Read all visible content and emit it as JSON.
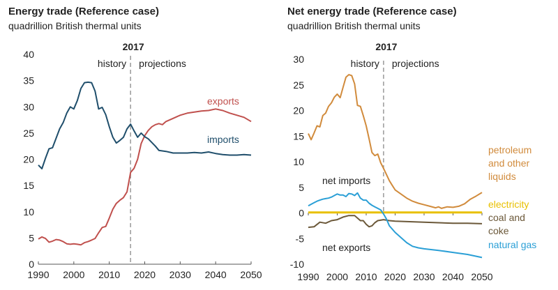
{
  "chart_data": [
    {
      "type": "line",
      "title": "Energy trade (Reference case)",
      "subtitle": "quadrillion British thermal units",
      "xlabel": "",
      "ylabel": "",
      "xlim": [
        1990,
        2050
      ],
      "ylim": [
        0,
        40
      ],
      "xticks": [
        1990,
        2000,
        2010,
        2020,
        2030,
        2040,
        2050
      ],
      "yticks": [
        0,
        5,
        10,
        15,
        20,
        25,
        30,
        35,
        40
      ],
      "divider": {
        "year": 2016,
        "label": "2017"
      },
      "history_label": "history",
      "projections_label": "projections",
      "series": [
        {
          "name": "exports",
          "color": "#c0504d",
          "x": [
            1990,
            1991,
            1992,
            1993,
            1994,
            1995,
            1996,
            1997,
            1998,
            1999,
            2000,
            2001,
            2002,
            2003,
            2004,
            2005,
            2006,
            2007,
            2008,
            2009,
            2010,
            2011,
            2012,
            2013,
            2014,
            2015,
            2016,
            2017,
            2018,
            2019,
            2020,
            2021,
            2022,
            2023,
            2024,
            2025,
            2026,
            2028,
            2030,
            2032,
            2034,
            2036,
            2038,
            2040,
            2042,
            2044,
            2046,
            2048,
            2050
          ],
          "values": [
            4.8,
            5.2,
            4.9,
            4.2,
            4.4,
            4.7,
            4.6,
            4.3,
            3.9,
            3.8,
            3.9,
            3.8,
            3.7,
            4.1,
            4.3,
            4.6,
            4.9,
            6.0,
            7.0,
            7.2,
            8.8,
            10.5,
            11.6,
            12.2,
            12.7,
            13.8,
            17.5,
            18.3,
            20.0,
            23.0,
            24.5,
            25.5,
            26.2,
            26.6,
            26.8,
            26.6,
            27.2,
            27.8,
            28.4,
            28.8,
            29.0,
            29.2,
            29.3,
            29.6,
            29.3,
            28.8,
            28.4,
            28.0,
            27.2
          ]
        },
        {
          "name": "imports",
          "color": "#1f4e6b",
          "x": [
            1990,
            1991,
            1992,
            1993,
            1994,
            1995,
            1996,
            1997,
            1998,
            1999,
            2000,
            2001,
            2002,
            2003,
            2004,
            2005,
            2006,
            2007,
            2008,
            2009,
            2010,
            2011,
            2012,
            2013,
            2014,
            2015,
            2016,
            2017,
            2018,
            2019,
            2020,
            2021,
            2022,
            2023,
            2024,
            2025,
            2026,
            2028,
            2030,
            2032,
            2034,
            2036,
            2038,
            2040,
            2042,
            2044,
            2046,
            2048,
            2050
          ],
          "values": [
            18.9,
            18.2,
            20.2,
            22.0,
            22.2,
            24.0,
            25.8,
            27.0,
            28.8,
            30.0,
            29.6,
            31.2,
            33.5,
            34.6,
            34.7,
            34.6,
            33.0,
            29.6,
            29.9,
            28.5,
            26.2,
            24.2,
            23.1,
            23.6,
            24.2,
            25.8,
            26.7,
            25.4,
            24.2,
            25.0,
            24.3,
            23.9,
            23.2,
            22.5,
            21.7,
            21.6,
            21.5,
            21.2,
            21.2,
            21.2,
            21.3,
            21.2,
            21.4,
            21.1,
            20.9,
            20.8,
            20.8,
            20.9,
            20.8
          ]
        }
      ]
    },
    {
      "type": "line",
      "title": "Net energy trade (Reference case)",
      "subtitle": "quadrillion British thermal units",
      "xlabel": "",
      "ylabel": "",
      "xlim": [
        1990,
        2050
      ],
      "ylim": [
        -10,
        30
      ],
      "xticks": [
        1990,
        2000,
        2010,
        2020,
        2030,
        2040,
        2050
      ],
      "yticks": [
        -10,
        -5,
        0,
        5,
        10,
        15,
        20,
        25,
        30
      ],
      "divider": {
        "year": 2016,
        "label": "2017"
      },
      "history_label": "history",
      "projections_label": "projections",
      "net_imports_label": "net imports",
      "net_exports_label": "net exports",
      "series": [
        {
          "name": "petroleum and other liquids",
          "label_lines": [
            "petroleum",
            "and other",
            "liquids"
          ],
          "color": "#d18b3c",
          "x": [
            1990,
            1991,
            1992,
            1993,
            1994,
            1995,
            1996,
            1997,
            1998,
            1999,
            2000,
            2001,
            2002,
            2003,
            2004,
            2005,
            2006,
            2007,
            2008,
            2009,
            2010,
            2011,
            2012,
            2013,
            2014,
            2015,
            2016,
            2017,
            2018,
            2019,
            2020,
            2022,
            2024,
            2026,
            2028,
            2030,
            2032,
            2034,
            2035,
            2036,
            2038,
            2040,
            2042,
            2044,
            2046,
            2048,
            2050
          ],
          "values": [
            15.5,
            14.3,
            15.6,
            17.0,
            16.8,
            19.0,
            19.5,
            20.8,
            21.5,
            22.6,
            23.2,
            22.5,
            24.5,
            26.5,
            27.0,
            26.8,
            25.2,
            21.0,
            20.8,
            19.0,
            17.0,
            14.5,
            11.8,
            11.2,
            11.5,
            9.8,
            8.7,
            7.5,
            6.3,
            5.4,
            4.5,
            3.7,
            2.9,
            2.3,
            1.9,
            1.6,
            1.3,
            1.0,
            1.2,
            0.9,
            1.2,
            1.1,
            1.3,
            1.8,
            2.7,
            3.3,
            4.0
          ]
        },
        {
          "name": "electricity",
          "label_lines": [
            "electricity"
          ],
          "color": "#e8c000",
          "x": [
            1990,
            2000,
            2010,
            2020,
            2030,
            2040,
            2050
          ],
          "values": [
            0.1,
            0.1,
            0.1,
            0.1,
            0.1,
            0.1,
            0.1
          ]
        },
        {
          "name": "coal and coke",
          "label_lines": [
            "coal and",
            "coke"
          ],
          "color": "#6b5839",
          "x": [
            1990,
            1992,
            1994,
            1996,
            1998,
            2000,
            2002,
            2004,
            2006,
            2008,
            2009,
            2010,
            2011,
            2012,
            2013,
            2014,
            2016,
            2018,
            2020,
            2025,
            2030,
            2035,
            2040,
            2045,
            2050
          ],
          "values": [
            -2.8,
            -2.7,
            -1.8,
            -2.0,
            -1.5,
            -1.3,
            -0.8,
            -0.5,
            -0.5,
            -1.5,
            -1.5,
            -2.2,
            -2.7,
            -2.5,
            -1.9,
            -1.5,
            -1.3,
            -1.5,
            -1.6,
            -1.7,
            -1.8,
            -1.9,
            -2.0,
            -2.0,
            -2.1
          ]
        },
        {
          "name": "natural gas",
          "label_lines": [
            "natural gas"
          ],
          "color": "#2a9fd6",
          "x": [
            1990,
            1991,
            1992,
            1993,
            1994,
            1995,
            1996,
            1997,
            1998,
            1999,
            2000,
            2001,
            2002,
            2003,
            2004,
            2005,
            2006,
            2007,
            2008,
            2009,
            2010,
            2011,
            2012,
            2013,
            2014,
            2015,
            2016,
            2017,
            2018,
            2020,
            2022,
            2024,
            2026,
            2028,
            2030,
            2035,
            2040,
            2045,
            2050
          ],
          "values": [
            1.4,
            1.7,
            2.0,
            2.3,
            2.5,
            2.7,
            2.8,
            2.9,
            3.1,
            3.4,
            3.7,
            3.5,
            3.5,
            3.2,
            3.8,
            3.7,
            3.4,
            3.9,
            2.9,
            2.5,
            2.5,
            1.9,
            1.5,
            1.2,
            0.9,
            0.6,
            -0.2,
            -1.2,
            -2.5,
            -3.8,
            -4.8,
            -5.8,
            -6.5,
            -6.8,
            -7.0,
            -7.3,
            -7.7,
            -8.1,
            -8.7
          ]
        }
      ]
    }
  ]
}
